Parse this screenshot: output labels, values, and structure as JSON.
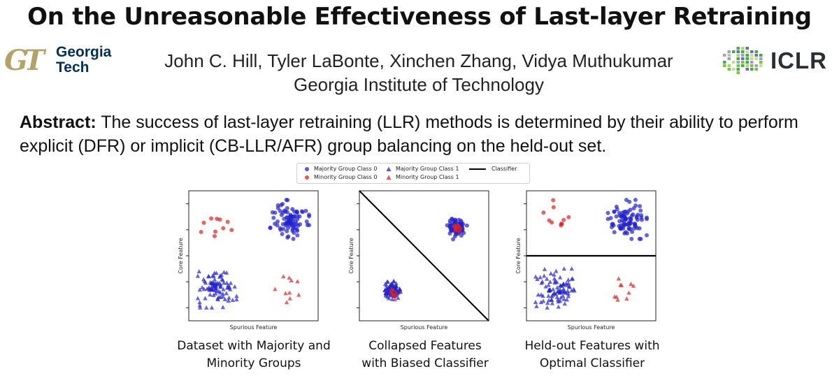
{
  "title": "On the Unreasonable Effectiveness of Last-layer Retraining",
  "logo_left": {
    "mark": "GT",
    "line1": "Georgia",
    "line2": "Tech"
  },
  "authors": "John C. Hill, Tyler LaBonte, Xinchen Zhang, Vidya Muthukumar",
  "affiliation": "Georgia Institute of Technology",
  "logo_right": {
    "text": "ICLR"
  },
  "abstract": {
    "label": "Abstract:",
    "text": "The success of last-layer retraining (LLR) methods is determined by their ability to perform explicit (DFR) or implicit (CB-LLR/AFR) group balancing on the held-out set."
  },
  "legend": {
    "majority_class0": "Majority Group Class 0",
    "minority_class0": "Minority Group Class 0",
    "majority_class1": "Majority Group Class 1",
    "minority_class1": "Minority Group Class 1",
    "classifier": "Classifier"
  },
  "colors": {
    "majority": "#2222cc",
    "minority": "#dd2222",
    "classifier": "#000000"
  },
  "chart_data": [
    {
      "type": "scatter",
      "xlabel": "Spurious Feature",
      "ylabel": "Core Feature",
      "caption_line1": "Dataset with Majority and",
      "caption_line2": "Minority Groups",
      "grid": false,
      "classifier": null,
      "clusters": [
        {
          "group": "majority",
          "class": 0,
          "marker": "circle",
          "center": [
            0.78,
            0.78
          ],
          "spread": 0.07,
          "count": 90
        },
        {
          "group": "minority",
          "class": 0,
          "marker": "circle",
          "center": [
            0.22,
            0.78
          ],
          "spread": 0.07,
          "count": 10
        },
        {
          "group": "majority",
          "class": 1,
          "marker": "triangle",
          "center": [
            0.22,
            0.25
          ],
          "spread": 0.07,
          "count": 90
        },
        {
          "group": "minority",
          "class": 1,
          "marker": "triangle",
          "center": [
            0.77,
            0.26
          ],
          "spread": 0.06,
          "count": 10
        }
      ]
    },
    {
      "type": "scatter",
      "xlabel": "Spurious Feature",
      "ylabel": "Core Feature",
      "caption_line1": "Collapsed Features",
      "caption_line2": "with Biased Classifier",
      "grid": false,
      "classifier": {
        "type": "diagonal"
      },
      "clusters": [
        {
          "group": "majority",
          "class": 0,
          "marker": "circle",
          "center": [
            0.75,
            0.72
          ],
          "spread": 0.03,
          "count": 90
        },
        {
          "group": "minority",
          "class": 0,
          "marker": "circle",
          "center": [
            0.75,
            0.72
          ],
          "spread": 0.02,
          "count": 10
        },
        {
          "group": "majority",
          "class": 1,
          "marker": "triangle",
          "center": [
            0.25,
            0.23
          ],
          "spread": 0.03,
          "count": 90
        },
        {
          "group": "minority",
          "class": 1,
          "marker": "triangle",
          "center": [
            0.26,
            0.23
          ],
          "spread": 0.02,
          "count": 10
        }
      ]
    },
    {
      "type": "scatter",
      "xlabel": "Spurious Feature",
      "ylabel": "Core Feature",
      "caption_line1": "Held-out Features with",
      "caption_line2": "Optimal Classifier",
      "grid": false,
      "classifier": {
        "type": "horizontal",
        "y": 0.5
      },
      "clusters": [
        {
          "group": "majority",
          "class": 0,
          "marker": "circle",
          "center": [
            0.78,
            0.78
          ],
          "spread": 0.07,
          "count": 90
        },
        {
          "group": "minority",
          "class": 0,
          "marker": "circle",
          "center": [
            0.22,
            0.78
          ],
          "spread": 0.07,
          "count": 10
        },
        {
          "group": "majority",
          "class": 1,
          "marker": "triangle",
          "center": [
            0.22,
            0.25
          ],
          "spread": 0.07,
          "count": 90
        },
        {
          "group": "minority",
          "class": 1,
          "marker": "triangle",
          "center": [
            0.77,
            0.26
          ],
          "spread": 0.06,
          "count": 10
        }
      ]
    }
  ]
}
